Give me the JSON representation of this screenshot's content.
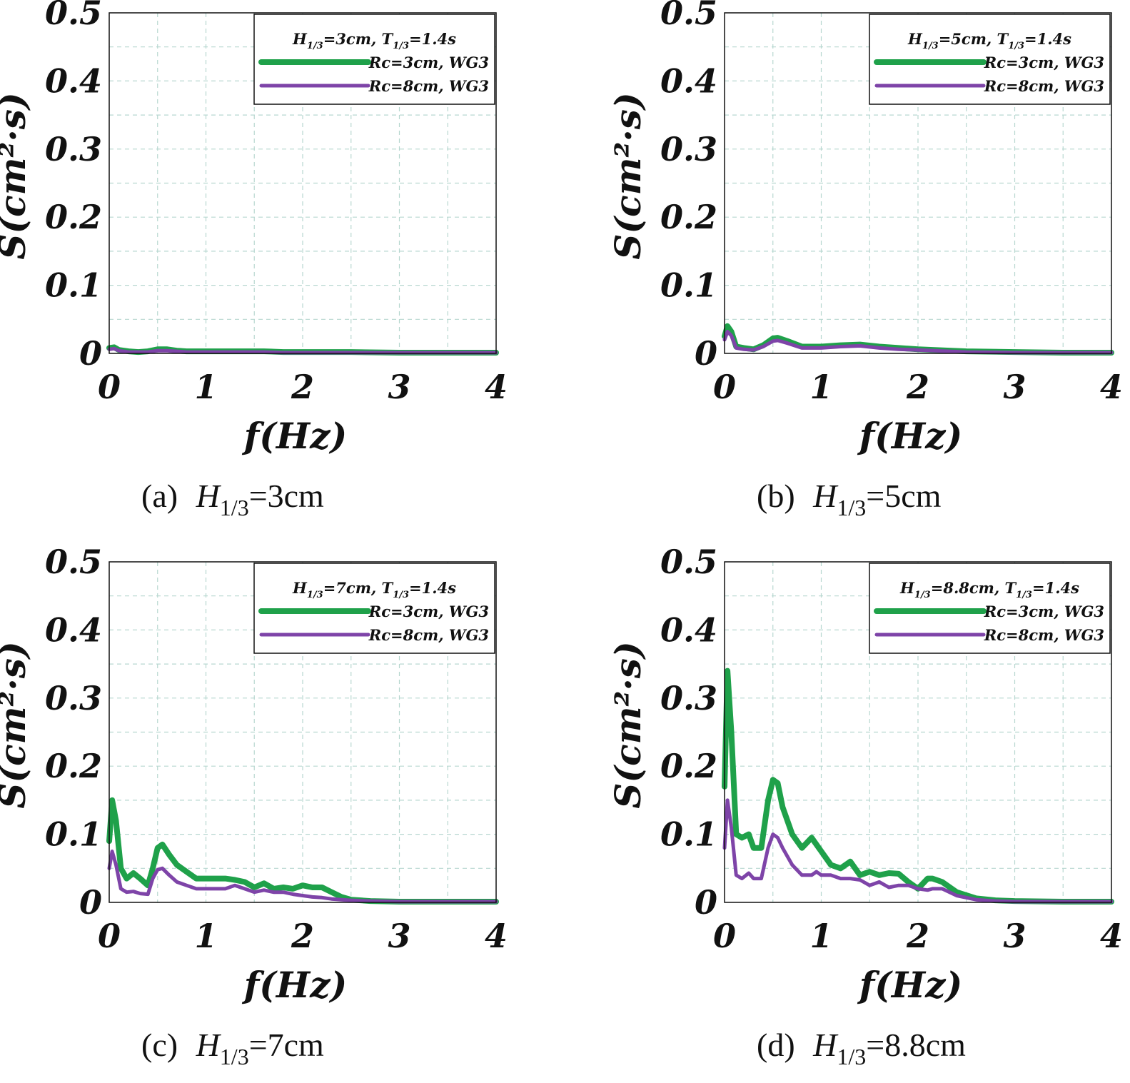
{
  "figure": {
    "charts_layout": "2x2 grid"
  },
  "colors": {
    "green": "#1fa14a",
    "purple": "#7e44a8",
    "grid": "#b7d7d0",
    "axis": "#111111"
  },
  "chart_data": [
    {
      "type": "line",
      "panel": "a",
      "xlabel": "f(Hz)",
      "ylabel": "S(cm²·s)",
      "xlim": [
        0,
        4
      ],
      "ylim": [
        0,
        0.5
      ],
      "xticks": [
        "0",
        "1",
        "2",
        "3",
        "4"
      ],
      "yticks": [
        "0",
        "0.1",
        "0.2",
        "0.3",
        "0.4",
        "0.5"
      ],
      "grid": true,
      "legend_position": "top-right",
      "legend_title": {
        "h": "H",
        "h_sub": "1/3",
        "h_val": "=3cm, ",
        "t": "T",
        "t_sub": "1/3",
        "t_val": "=1.4s"
      },
      "caption": {
        "prefix": "(a) ",
        "h": "H",
        "sub": "1/3",
        "value": "=3cm"
      },
      "series": [
        {
          "name": "Rc=3cm, WG3",
          "color_key": "green",
          "x": [
            0,
            0.05,
            0.1,
            0.2,
            0.3,
            0.4,
            0.5,
            0.6,
            0.7,
            0.8,
            1.0,
            1.2,
            1.4,
            1.6,
            1.8,
            2.0,
            2.5,
            3.0,
            3.5,
            4.0
          ],
          "y": [
            0.008,
            0.009,
            0.005,
            0.003,
            0.002,
            0.003,
            0.006,
            0.006,
            0.004,
            0.003,
            0.003,
            0.003,
            0.003,
            0.003,
            0.002,
            0.002,
            0.002,
            0.001,
            0.001,
            0.001
          ]
        },
        {
          "name": "Rc=8cm, WG3",
          "color_key": "purple",
          "x": [
            0,
            0.05,
            0.1,
            0.2,
            0.3,
            0.4,
            0.5,
            0.6,
            0.7,
            0.8,
            1.0,
            1.2,
            1.4,
            1.6,
            1.8,
            2.0,
            2.5,
            3.0,
            3.5,
            4.0
          ],
          "y": [
            0.006,
            0.007,
            0.004,
            0.002,
            0.002,
            0.002,
            0.004,
            0.004,
            0.003,
            0.002,
            0.002,
            0.002,
            0.002,
            0.002,
            0.001,
            0.001,
            0.001,
            0.001,
            0.001,
            0.001
          ]
        }
      ]
    },
    {
      "type": "line",
      "panel": "b",
      "xlabel": "f(Hz)",
      "ylabel": "S(cm²·s)",
      "xlim": [
        0,
        4
      ],
      "ylim": [
        0,
        0.5
      ],
      "xticks": [
        "0",
        "1",
        "2",
        "3",
        "4"
      ],
      "yticks": [
        "0",
        "0.1",
        "0.2",
        "0.3",
        "0.4",
        "0.5"
      ],
      "grid": true,
      "legend_position": "top-right",
      "legend_title": {
        "h": "H",
        "h_sub": "1/3",
        "h_val": "=5cm, ",
        "t": "T",
        "t_sub": "1/3",
        "t_val": "=1.4s"
      },
      "caption": {
        "prefix": "(b) ",
        "h": "H",
        "sub": "1/3",
        "value": "=5cm"
      },
      "series": [
        {
          "name": "Rc=3cm, WG3",
          "color_key": "green",
          "x": [
            0,
            0.03,
            0.07,
            0.12,
            0.2,
            0.3,
            0.4,
            0.5,
            0.55,
            0.65,
            0.8,
            1.0,
            1.2,
            1.4,
            1.6,
            1.8,
            2.0,
            2.5,
            3.0,
            3.5,
            4.0
          ],
          "y": [
            0.025,
            0.04,
            0.032,
            0.01,
            0.008,
            0.006,
            0.012,
            0.022,
            0.023,
            0.018,
            0.01,
            0.01,
            0.012,
            0.013,
            0.01,
            0.008,
            0.006,
            0.003,
            0.002,
            0.001,
            0.001
          ]
        },
        {
          "name": "Rc=8cm, WG3",
          "color_key": "purple",
          "x": [
            0,
            0.03,
            0.07,
            0.12,
            0.2,
            0.3,
            0.4,
            0.5,
            0.55,
            0.65,
            0.8,
            1.0,
            1.2,
            1.4,
            1.6,
            1.8,
            2.0,
            2.5,
            3.0,
            3.5,
            4.0
          ],
          "y": [
            0.02,
            0.032,
            0.026,
            0.008,
            0.006,
            0.005,
            0.01,
            0.018,
            0.019,
            0.015,
            0.008,
            0.008,
            0.01,
            0.011,
            0.008,
            0.006,
            0.005,
            0.002,
            0.001,
            0.001,
            0.001
          ]
        }
      ]
    },
    {
      "type": "line",
      "panel": "c",
      "xlabel": "f(Hz)",
      "ylabel": "S(cm²·s)",
      "xlim": [
        0,
        4
      ],
      "ylim": [
        0,
        0.5
      ],
      "xticks": [
        "0",
        "1",
        "2",
        "3",
        "4"
      ],
      "yticks": [
        "0",
        "0.1",
        "0.2",
        "0.3",
        "0.4",
        "0.5"
      ],
      "grid": true,
      "legend_position": "top-right",
      "legend_title": {
        "h": "H",
        "h_sub": "1/3",
        "h_val": "=7cm, ",
        "t": "T",
        "t_sub": "1/3",
        "t_val": "=1.4s"
      },
      "caption": {
        "prefix": "(c) ",
        "h": "H",
        "sub": "1/3",
        "value": "=7cm"
      },
      "series": [
        {
          "name": "Rc=3cm, WG3",
          "color_key": "green",
          "x": [
            0,
            0.03,
            0.07,
            0.12,
            0.18,
            0.25,
            0.32,
            0.4,
            0.45,
            0.5,
            0.55,
            0.62,
            0.7,
            0.8,
            0.9,
            1.0,
            1.1,
            1.2,
            1.3,
            1.4,
            1.5,
            1.6,
            1.7,
            1.8,
            1.9,
            2.0,
            2.1,
            2.2,
            2.3,
            2.4,
            2.5,
            2.7,
            3.0,
            3.5,
            4.0
          ],
          "y": [
            0.09,
            0.15,
            0.12,
            0.05,
            0.035,
            0.043,
            0.035,
            0.025,
            0.05,
            0.08,
            0.085,
            0.07,
            0.055,
            0.045,
            0.035,
            0.035,
            0.035,
            0.035,
            0.033,
            0.03,
            0.022,
            0.028,
            0.02,
            0.022,
            0.02,
            0.025,
            0.022,
            0.022,
            0.015,
            0.008,
            0.004,
            0.002,
            0.001,
            0.001,
            0.001
          ]
        },
        {
          "name": "Rc=8cm, WG3",
          "color_key": "purple",
          "x": [
            0,
            0.03,
            0.07,
            0.12,
            0.18,
            0.25,
            0.32,
            0.4,
            0.45,
            0.5,
            0.55,
            0.62,
            0.7,
            0.8,
            0.9,
            1.0,
            1.1,
            1.2,
            1.3,
            1.4,
            1.5,
            1.6,
            1.7,
            1.8,
            1.9,
            2.0,
            2.1,
            2.2,
            2.3,
            2.4,
            2.5,
            2.7,
            3.0,
            3.5,
            4.0
          ],
          "y": [
            0.05,
            0.075,
            0.055,
            0.02,
            0.015,
            0.016,
            0.013,
            0.012,
            0.035,
            0.048,
            0.05,
            0.04,
            0.03,
            0.025,
            0.02,
            0.02,
            0.02,
            0.02,
            0.025,
            0.02,
            0.015,
            0.018,
            0.015,
            0.015,
            0.012,
            0.01,
            0.008,
            0.007,
            0.005,
            0.004,
            0.003,
            0.002,
            0.001,
            0.001,
            0.001
          ]
        }
      ]
    },
    {
      "type": "line",
      "panel": "d",
      "xlabel": "f(Hz)",
      "ylabel": "S(cm²·s)",
      "xlim": [
        0,
        4
      ],
      "ylim": [
        0,
        0.5
      ],
      "xticks": [
        "0",
        "1",
        "2",
        "3",
        "4"
      ],
      "yticks": [
        "0",
        "0.1",
        "0.2",
        "0.3",
        "0.4",
        "0.5"
      ],
      "grid": true,
      "legend_position": "top-right",
      "legend_title": {
        "h": "H",
        "h_sub": "1/3",
        "h_val": "=8.8cm, ",
        "t": "T",
        "t_sub": "1/3",
        "t_val": "=1.4s"
      },
      "caption": {
        "prefix": "(d) ",
        "h": "H",
        "sub": "1/3",
        "value": "=8.8cm"
      },
      "series": [
        {
          "name": "Rc=3cm, WG3",
          "color_key": "green",
          "x": [
            0,
            0.03,
            0.07,
            0.12,
            0.18,
            0.25,
            0.3,
            0.38,
            0.45,
            0.5,
            0.55,
            0.6,
            0.7,
            0.8,
            0.9,
            0.95,
            1.0,
            1.1,
            1.2,
            1.3,
            1.4,
            1.5,
            1.6,
            1.7,
            1.8,
            1.9,
            2.0,
            2.1,
            2.15,
            2.25,
            2.4,
            2.6,
            2.8,
            3.0,
            3.5,
            4.0
          ],
          "y": [
            0.17,
            0.34,
            0.25,
            0.1,
            0.095,
            0.1,
            0.08,
            0.08,
            0.15,
            0.18,
            0.175,
            0.14,
            0.1,
            0.08,
            0.095,
            0.085,
            0.075,
            0.055,
            0.05,
            0.06,
            0.04,
            0.045,
            0.04,
            0.043,
            0.042,
            0.03,
            0.02,
            0.035,
            0.035,
            0.03,
            0.015,
            0.006,
            0.003,
            0.002,
            0.001,
            0.001
          ]
        },
        {
          "name": "Rc=8cm, WG3",
          "color_key": "purple",
          "x": [
            0,
            0.03,
            0.07,
            0.12,
            0.18,
            0.25,
            0.3,
            0.38,
            0.45,
            0.5,
            0.55,
            0.6,
            0.7,
            0.8,
            0.9,
            0.95,
            1.0,
            1.1,
            1.2,
            1.3,
            1.4,
            1.5,
            1.6,
            1.7,
            1.8,
            1.9,
            2.0,
            2.1,
            2.15,
            2.25,
            2.4,
            2.6,
            2.8,
            3.0,
            3.5,
            4.0
          ],
          "y": [
            0.08,
            0.15,
            0.11,
            0.04,
            0.035,
            0.043,
            0.035,
            0.035,
            0.08,
            0.1,
            0.095,
            0.08,
            0.055,
            0.04,
            0.04,
            0.045,
            0.04,
            0.04,
            0.035,
            0.035,
            0.033,
            0.025,
            0.03,
            0.022,
            0.025,
            0.025,
            0.02,
            0.018,
            0.02,
            0.02,
            0.01,
            0.004,
            0.002,
            0.001,
            0.001,
            0.001
          ]
        }
      ]
    }
  ]
}
